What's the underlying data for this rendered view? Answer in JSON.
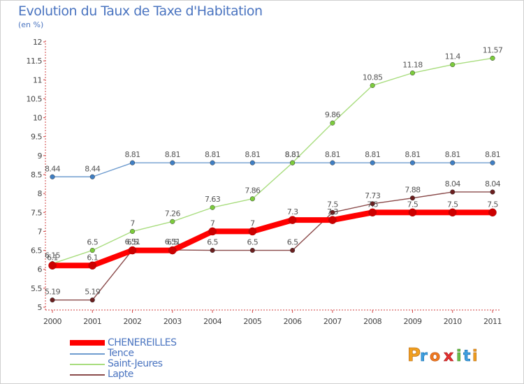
{
  "title": "Evolution du Taux de Taxe d'Habitation",
  "subtitle": "(en %)",
  "logo_text": "Proxiti",
  "chart_data": {
    "type": "line",
    "title": "Evolution du Taux de Taxe d'Habitation",
    "subtitle": "(en %)",
    "xlabel": "",
    "ylabel": "",
    "categories": [
      "2000",
      "2001",
      "2002",
      "2003",
      "2004",
      "2005",
      "2006",
      "2007",
      "2008",
      "2009",
      "2010",
      "2011"
    ],
    "ylim": [
      5,
      12
    ],
    "yticks": [
      "5",
      "5.5",
      "6",
      "6.5",
      "7",
      "7.5",
      "8",
      "8.5",
      "9",
      "9.5",
      "10",
      "10.5",
      "11",
      "11.5",
      "12"
    ],
    "grid": false,
    "legend_position": "bottom-left",
    "series": [
      {
        "name": "CHENEREILLES",
        "color": "#ff0000",
        "point_color": "#cc0000",
        "width": 8,
        "values": [
          6.1,
          6.1,
          6.5,
          6.5,
          7,
          7,
          7.3,
          7.3,
          7.5,
          7.5,
          7.5,
          7.5
        ]
      },
      {
        "name": "Tence",
        "color": "#6f9ccf",
        "point_color": "#3f7fc4",
        "width": 1.4,
        "values": [
          8.44,
          8.44,
          8.81,
          8.81,
          8.81,
          8.81,
          8.81,
          8.81,
          8.81,
          8.81,
          8.81,
          8.81
        ]
      },
      {
        "name": "Saint-Jeures",
        "color": "#a9dd7f",
        "point_color": "#7ccc3c",
        "width": 1.4,
        "values": [
          6.15,
          6.5,
          7,
          7.26,
          7.63,
          7.86,
          8.81,
          9.86,
          10.85,
          11.18,
          11.4,
          11.57
        ]
      },
      {
        "name": "Lapte",
        "color": "#8a4a4a",
        "point_color": "#6b1f1f",
        "width": 1.4,
        "values": [
          5.19,
          5.19,
          6.51,
          6.51,
          6.5,
          6.5,
          6.5,
          7.5,
          7.73,
          7.88,
          8.04,
          8.04
        ]
      }
    ],
    "data_labels": [
      [
        "6.1",
        "6.1",
        "6.5",
        "6.5",
        "7",
        "7",
        "7.3",
        "7.3",
        "7.5",
        "7.5",
        "7.5",
        "7.5"
      ],
      [
        "8.44",
        "8.44",
        "8.81",
        "8.81",
        "8.81",
        "8.81",
        "8.81",
        "8.81",
        "8.81",
        "8.81",
        "8.81",
        "8.81"
      ],
      [
        "6.15",
        "6.5",
        "7",
        "7.26",
        "7.63",
        "7.86",
        "8.81",
        "9.86",
        "10.85",
        "11.18",
        "11.4",
        "11.57"
      ],
      [
        "5.19",
        "5.19",
        "6.51",
        "6.51",
        "6.5",
        "6.5",
        "6.5",
        "7.5",
        "7.73",
        "7.88",
        "8.04",
        "8.04"
      ]
    ]
  }
}
